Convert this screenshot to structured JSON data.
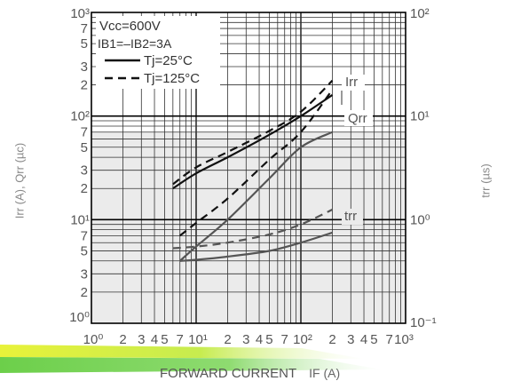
{
  "chart_data": {
    "type": "line",
    "xscale": "log",
    "yscale": "log",
    "xlim": [
      1,
      1000
    ],
    "ylim_left": [
      1,
      1000
    ],
    "ylim_right": [
      0.1,
      100
    ],
    "grid": true,
    "xlabel": "FORWARD CURRENT",
    "xlabel_unit": "IF (A)",
    "ylabel_left": "Irr (A), Qrr (µc)",
    "ylabel_right": "trr (µs)",
    "x_tick_labels": [
      "10⁰",
      "2",
      "3",
      "4",
      "5",
      "7",
      "10¹",
      "2",
      "3",
      "4",
      "5",
      "7",
      "10²",
      "2",
      "3",
      "4",
      "5",
      "7",
      "10³"
    ],
    "y_left_tick_labels": [
      "10³",
      "7",
      "5",
      "3",
      "2",
      "10²",
      "7",
      "5",
      "3",
      "2",
      "10¹",
      "7",
      "5",
      "3",
      "2",
      "10⁰"
    ],
    "y_right_tick_labels": [
      "10²",
      "10¹",
      "10⁰",
      "10⁻¹"
    ],
    "legend": {
      "lines": [
        "Vcc=600V",
        "IB1=–IB2=3A"
      ],
      "entries": [
        {
          "label": "Tj=25°C",
          "style": "solid"
        },
        {
          "label": "Tj=125°C",
          "style": "dashed"
        }
      ],
      "placement": "top-left"
    },
    "annotations": [
      "Irr",
      "Qrr",
      "trr"
    ],
    "series": [
      {
        "curve": "Irr",
        "style": "solid",
        "x": [
          6,
          10,
          20,
          50,
          100,
          200
        ],
        "y": [
          20,
          28,
          40,
          66,
          100,
          160
        ]
      },
      {
        "curve": "Irr",
        "style": "dashed",
        "x": [
          6,
          10,
          20,
          50,
          100,
          200
        ],
        "y": [
          22,
          32,
          45,
          72,
          110,
          220
        ]
      },
      {
        "curve": "Qrr",
        "style": "solid",
        "x": [
          7,
          10,
          20,
          50,
          100,
          200
        ],
        "y": [
          4.0,
          5.5,
          10,
          25,
          50,
          70
        ]
      },
      {
        "curve": "Qrr",
        "style": "dashed",
        "x": [
          7,
          10,
          20,
          50,
          100,
          200
        ],
        "y": [
          7.0,
          9.3,
          16,
          38,
          70,
          180
        ]
      },
      {
        "curve": "trr",
        "style": "solid",
        "x": [
          7,
          10,
          20,
          50,
          100,
          200
        ],
        "y": [
          4.0,
          4.1,
          4.4,
          5.0,
          6.0,
          7.5
        ]
      },
      {
        "curve": "trr",
        "style": "dashed",
        "x": [
          6,
          10,
          20,
          50,
          100,
          200
        ],
        "y": [
          5.3,
          5.5,
          6.0,
          7.2,
          9.0,
          12.5
        ]
      }
    ]
  }
}
